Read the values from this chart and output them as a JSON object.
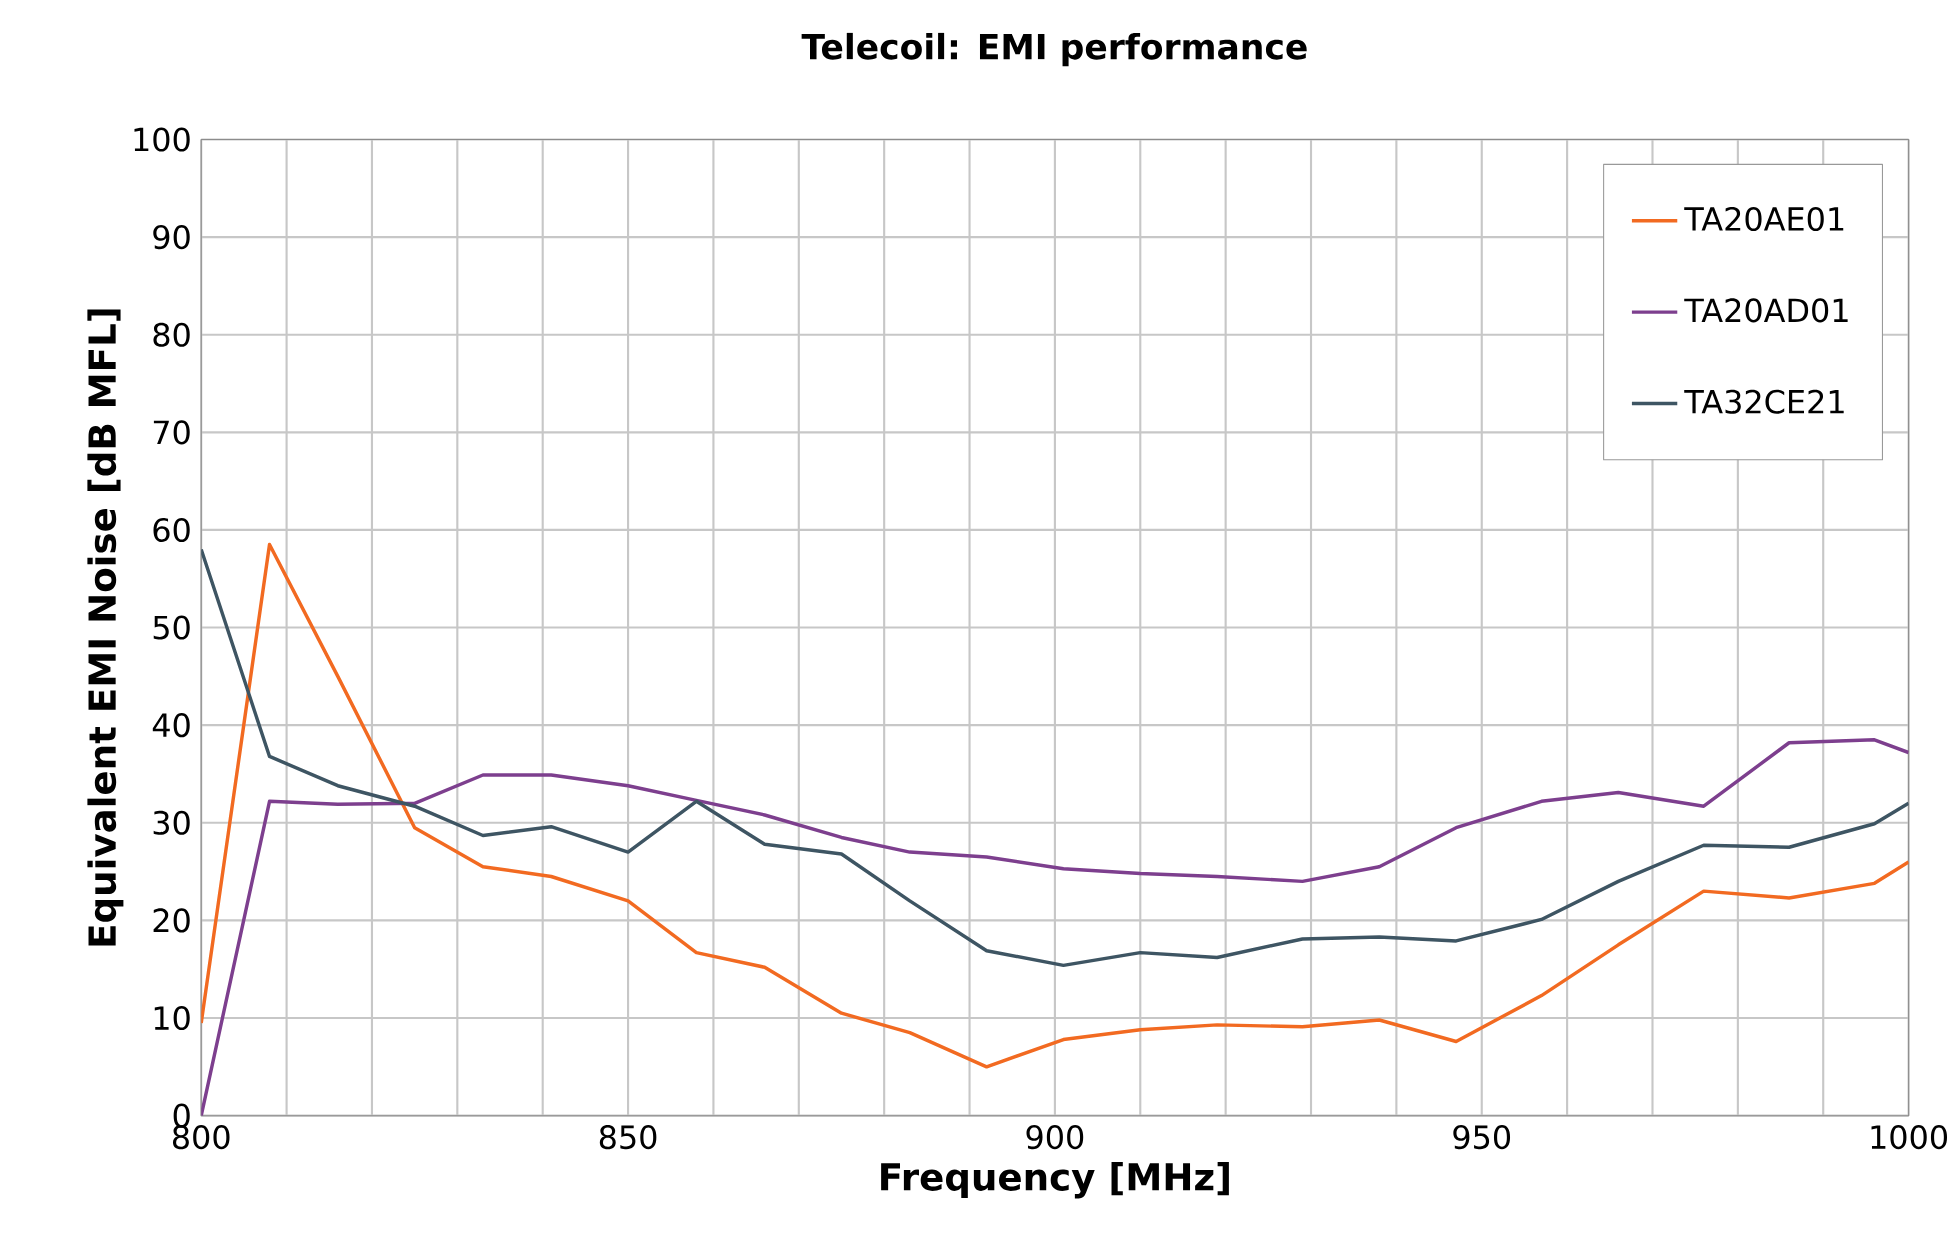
{
  "chart_data": {
    "type": "line",
    "title": "Telecoil: EMI performance",
    "xlabel": "Frequency [MHz]",
    "ylabel": "Equivalent EMI Noise [dB MFL]",
    "x": [
      800,
      808,
      816,
      825,
      833,
      841,
      850,
      858,
      866,
      875,
      883,
      892,
      901,
      910,
      919,
      929,
      938,
      947,
      957,
      966,
      976,
      986,
      996,
      1000
    ],
    "series": [
      {
        "name": "TA20AE01",
        "color": "#f26a21",
        "values": [
          9.5,
          58.5,
          45,
          29.5,
          25.5,
          24.5,
          22,
          16.7,
          15.2,
          10.5,
          8.5,
          5,
          7.8,
          8.8,
          9.3,
          9.1,
          9.8,
          7.6,
          12.3,
          17.5,
          23,
          22.3,
          23.8,
          26
        ]
      },
      {
        "name": "TA20AD01",
        "color": "#7d3f8e",
        "values": [
          0,
          32.2,
          31.9,
          32,
          34.9,
          34.9,
          33.8,
          32.3,
          30.8,
          28.5,
          27,
          26.5,
          25.3,
          24.8,
          24.5,
          24,
          25.5,
          29.5,
          32.2,
          33.1,
          31.7,
          38.2,
          38.5,
          37.2
        ]
      },
      {
        "name": "TA32CE21",
        "color": "#3e5563",
        "values": [
          58,
          36.8,
          33.8,
          31.7,
          28.7,
          29.6,
          27,
          32.2,
          27.8,
          26.8,
          22,
          16.9,
          15.4,
          16.7,
          16.2,
          18.1,
          18.3,
          17.9,
          20.1,
          24,
          27.7,
          27.5,
          29.9,
          32
        ]
      }
    ],
    "xlim": [
      800,
      1000
    ],
    "xticks": [
      800,
      {
        "value": 810,
        "label": null
      },
      {
        "value": 820,
        "label": null
      },
      {
        "value": 830,
        "label": null
      },
      {
        "value": 840,
        "label": null
      },
      850,
      {
        "value": 860,
        "label": null
      },
      {
        "value": 870,
        "label": null
      },
      {
        "value": 880,
        "label": null
      },
      {
        "value": 890,
        "label": null
      },
      900,
      {
        "value": 910,
        "label": null
      },
      {
        "value": 920,
        "label": null
      },
      {
        "value": 930,
        "label": null
      },
      {
        "value": 940,
        "label": null
      },
      950,
      {
        "value": 960,
        "label": null
      },
      {
        "value": 970,
        "label": null
      },
      {
        "value": 980,
        "label": null
      },
      {
        "value": 990,
        "label": null
      },
      1000
    ],
    "ylim": [
      0,
      100
    ],
    "yticks": [
      0,
      10,
      20,
      30,
      40,
      50,
      60,
      70,
      80,
      90,
      100
    ],
    "grid": true,
    "legend": "top right",
    "line_style": "solid"
  }
}
